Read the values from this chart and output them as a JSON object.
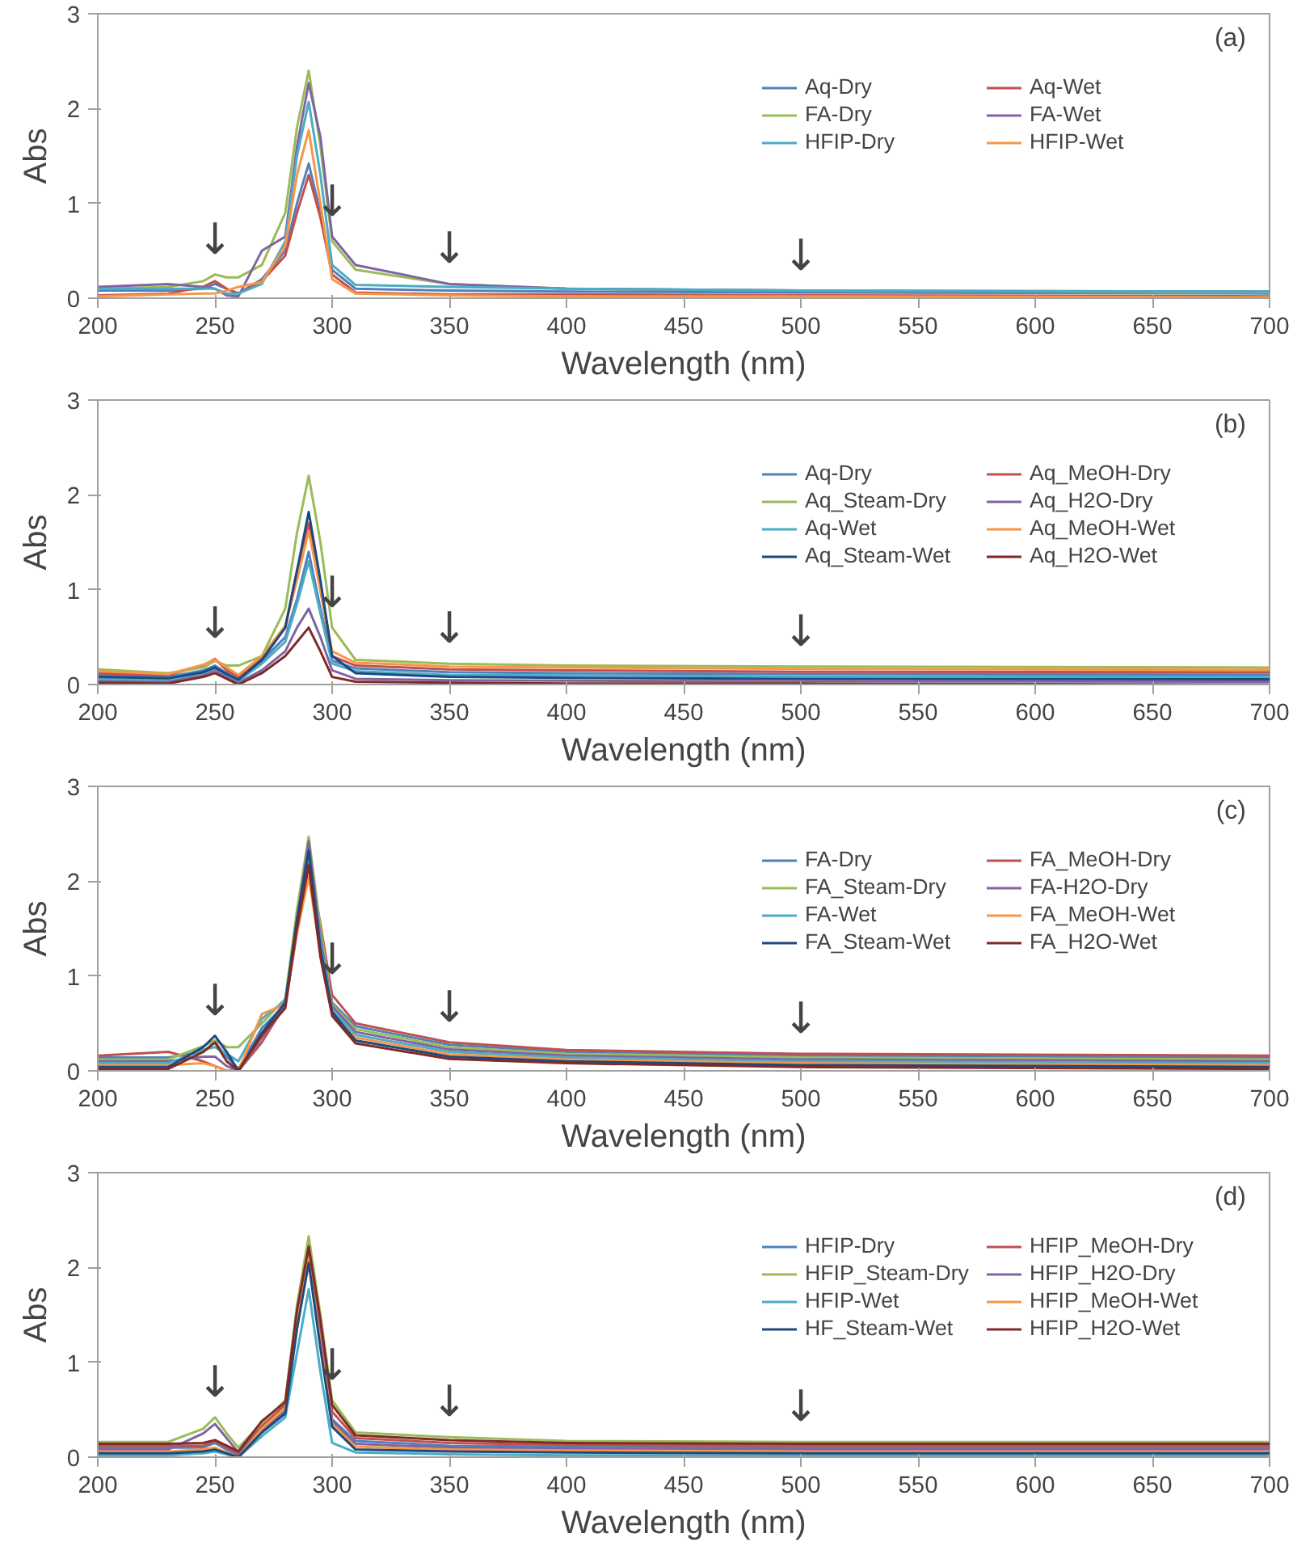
{
  "chart_data": [
    {
      "type": "line",
      "title": "(a)",
      "xlabel": "Wavelength (nm)",
      "ylabel": "Abs",
      "xlim": [
        200,
        700
      ],
      "ylim": [
        0,
        3
      ],
      "xticks": [
        200,
        250,
        300,
        350,
        400,
        450,
        500,
        550,
        600,
        650,
        700
      ],
      "yticks": [
        0,
        1,
        2,
        3
      ],
      "grid": false,
      "legend": "top right",
      "line_style": "solid",
      "x": [
        200,
        230,
        245,
        250,
        255,
        260,
        270,
        280,
        285,
        290,
        295,
        300,
        310,
        350,
        400,
        500,
        700
      ],
      "annotations": [
        {
          "text": "↓",
          "x": 250,
          "y": 0.25
        },
        {
          "text": "↓",
          "x": 300,
          "y": 0.65
        },
        {
          "text": "↓",
          "x": 350,
          "y": 0.15
        },
        {
          "text": "↓",
          "x": 500,
          "y": 0.08
        }
      ],
      "series": [
        {
          "name": "Aq-Dry",
          "color": "#4f81bd",
          "values": [
            0.08,
            0.08,
            0.1,
            0.15,
            0.1,
            0.05,
            0.2,
            0.5,
            1.0,
            1.42,
            0.9,
            0.3,
            0.1,
            0.08,
            0.07,
            0.06,
            0.05
          ]
        },
        {
          "name": "Aq-Wet",
          "color": "#c0504d",
          "values": [
            0.03,
            0.05,
            0.12,
            0.18,
            0.1,
            0.05,
            0.18,
            0.45,
            0.9,
            1.3,
            0.85,
            0.25,
            0.06,
            0.04,
            0.04,
            0.03,
            0.02
          ]
        },
        {
          "name": "FA-Dry",
          "color": "#9bbb59",
          "values": [
            0.1,
            0.12,
            0.18,
            0.25,
            0.22,
            0.22,
            0.35,
            0.9,
            1.8,
            2.4,
            1.6,
            0.6,
            0.3,
            0.15,
            0.1,
            0.08,
            0.06
          ]
        },
        {
          "name": "FA-Wet",
          "color": "#8064a2",
          "values": [
            0.12,
            0.15,
            0.12,
            0.1,
            0.03,
            0.02,
            0.5,
            0.65,
            1.6,
            2.27,
            1.7,
            0.65,
            0.35,
            0.15,
            0.1,
            0.08,
            0.07
          ]
        },
        {
          "name": "HFIP-Dry",
          "color": "#4bacc6",
          "values": [
            0.1,
            0.1,
            0.1,
            0.1,
            0.05,
            0.05,
            0.15,
            0.6,
            1.5,
            2.07,
            1.3,
            0.35,
            0.14,
            0.12,
            0.1,
            0.08,
            0.07
          ]
        },
        {
          "name": "HFIP-Wet",
          "color": "#f79646",
          "values": [
            0.02,
            0.04,
            0.05,
            0.05,
            0.08,
            0.12,
            0.17,
            0.55,
            1.3,
            1.77,
            1.0,
            0.2,
            0.05,
            0.03,
            0.02,
            0.02,
            0.01
          ]
        }
      ]
    },
    {
      "type": "line",
      "title": "(b)",
      "xlabel": "Wavelength (nm)",
      "ylabel": "Abs",
      "xlim": [
        200,
        700
      ],
      "ylim": [
        0,
        3
      ],
      "xticks": [
        200,
        250,
        300,
        350,
        400,
        450,
        500,
        550,
        600,
        650,
        700
      ],
      "yticks": [
        0,
        1,
        2,
        3
      ],
      "grid": false,
      "legend": "top right",
      "line_style": "solid",
      "x": [
        200,
        230,
        245,
        250,
        255,
        260,
        270,
        280,
        285,
        290,
        295,
        300,
        310,
        350,
        400,
        500,
        700
      ],
      "annotations": [
        {
          "text": "↓",
          "x": 250,
          "y": 0.27
        },
        {
          "text": "↓",
          "x": 300,
          "y": 0.6
        },
        {
          "text": "↓",
          "x": 350,
          "y": 0.22
        },
        {
          "text": "↓",
          "x": 500,
          "y": 0.19
        }
      ],
      "series": [
        {
          "name": "Aq-Dry",
          "color": "#4f81bd",
          "values": [
            0.1,
            0.08,
            0.15,
            0.2,
            0.12,
            0.05,
            0.25,
            0.5,
            0.9,
            1.4,
            0.8,
            0.25,
            0.17,
            0.13,
            0.12,
            0.11,
            0.105
          ]
        },
        {
          "name": "Aq_MeOH-Dry",
          "color": "#c0504d",
          "values": [
            0.12,
            0.1,
            0.2,
            0.27,
            0.15,
            0.08,
            0.28,
            0.6,
            1.2,
            1.7,
            1.0,
            0.3,
            0.2,
            0.16,
            0.15,
            0.135,
            0.13
          ]
        },
        {
          "name": "Aq_Steam-Dry",
          "color": "#9bbb59",
          "values": [
            0.16,
            0.12,
            0.18,
            0.25,
            0.2,
            0.2,
            0.3,
            0.8,
            1.6,
            2.2,
            1.5,
            0.6,
            0.26,
            0.22,
            0.2,
            0.19,
            0.18
          ]
        },
        {
          "name": "Aq_H2O-Dry",
          "color": "#8064a2",
          "values": [
            0.04,
            0.03,
            0.1,
            0.15,
            0.08,
            0.02,
            0.15,
            0.35,
            0.6,
            0.8,
            0.5,
            0.15,
            0.06,
            0.045,
            0.04,
            0.035,
            0.03
          ]
        },
        {
          "name": "Aq-Wet",
          "color": "#4bacc6",
          "values": [
            0.06,
            0.05,
            0.12,
            0.17,
            0.1,
            0.04,
            0.22,
            0.45,
            0.85,
            1.3,
            0.75,
            0.22,
            0.14,
            0.1,
            0.095,
            0.085,
            0.08
          ]
        },
        {
          "name": "Aq_MeOH-Wet",
          "color": "#f79646",
          "values": [
            0.14,
            0.11,
            0.21,
            0.26,
            0.18,
            0.1,
            0.3,
            0.62,
            1.1,
            1.62,
            1.0,
            0.35,
            0.23,
            0.19,
            0.18,
            0.165,
            0.155
          ]
        },
        {
          "name": "Aq_Steam-Wet",
          "color": "#1f497d",
          "values": [
            0.08,
            0.065,
            0.13,
            0.18,
            0.11,
            0.05,
            0.26,
            0.6,
            1.2,
            1.82,
            1.1,
            0.3,
            0.12,
            0.08,
            0.07,
            0.06,
            0.055
          ]
        },
        {
          "name": "Aq_H2O-Wet",
          "color": "#7f2a26",
          "values": [
            0.02,
            0.01,
            0.08,
            0.12,
            0.06,
            0.0,
            0.12,
            0.3,
            0.45,
            0.6,
            0.35,
            0.08,
            0.03,
            0.02,
            0.01,
            0.01,
            0.0
          ]
        }
      ]
    },
    {
      "type": "line",
      "title": "(c)",
      "xlabel": "Wavelength (nm)",
      "ylabel": "Abs",
      "xlim": [
        200,
        700
      ],
      "ylim": [
        0,
        3
      ],
      "xticks": [
        200,
        250,
        300,
        350,
        400,
        450,
        500,
        550,
        600,
        650,
        700
      ],
      "yticks": [
        0,
        1,
        2,
        3
      ],
      "grid": false,
      "legend": "top right",
      "line_style": "solid",
      "x": [
        200,
        230,
        245,
        250,
        255,
        260,
        270,
        280,
        285,
        290,
        295,
        300,
        310,
        350,
        400,
        500,
        700
      ],
      "annotations": [
        {
          "text": "↓",
          "x": 250,
          "y": 0.37
        },
        {
          "text": "↓",
          "x": 300,
          "y": 0.8
        },
        {
          "text": "↓",
          "x": 350,
          "y": 0.3
        },
        {
          "text": "↓",
          "x": 500,
          "y": 0.18
        }
      ],
      "series": [
        {
          "name": "FA-Dry",
          "color": "#4f81bd",
          "values": [
            0.14,
            0.14,
            0.2,
            0.3,
            0.15,
            0.02,
            0.45,
            0.7,
            1.62,
            2.37,
            1.45,
            0.72,
            0.47,
            0.275,
            0.2,
            0.16,
            0.14
          ]
        },
        {
          "name": "FA_MeOH-Dry",
          "color": "#c0504d",
          "values": [
            0.16,
            0.2,
            0.1,
            0.05,
            0.0,
            0.0,
            0.3,
            0.7,
            1.5,
            2.2,
            1.55,
            0.8,
            0.5,
            0.3,
            0.22,
            0.18,
            0.16
          ]
        },
        {
          "name": "FA_Steam-Dry",
          "color": "#9bbb59",
          "values": [
            0.12,
            0.12,
            0.26,
            0.32,
            0.25,
            0.25,
            0.5,
            0.76,
            1.7,
            2.47,
            1.5,
            0.7,
            0.44,
            0.25,
            0.18,
            0.14,
            0.12
          ]
        },
        {
          "name": "FA-H2O-Dry",
          "color": "#8064a2",
          "values": [
            0.1,
            0.1,
            0.15,
            0.15,
            0.05,
            0.0,
            0.35,
            0.68,
            1.58,
            2.42,
            1.4,
            0.68,
            0.41,
            0.225,
            0.16,
            0.12,
            0.1
          ]
        },
        {
          "name": "FA-Wet",
          "color": "#4bacc6",
          "values": [
            0.08,
            0.08,
            0.22,
            0.25,
            0.18,
            0.1,
            0.55,
            0.74,
            1.55,
            2.27,
            1.35,
            0.64,
            0.38,
            0.2,
            0.14,
            0.1,
            0.08
          ]
        },
        {
          "name": "FA_MeOH-Wet",
          "color": "#f79646",
          "values": [
            0.06,
            0.06,
            0.08,
            0.05,
            0.0,
            0.0,
            0.6,
            0.7,
            1.45,
            2.05,
            1.25,
            0.6,
            0.35,
            0.175,
            0.12,
            0.08,
            0.06
          ]
        },
        {
          "name": "FA_Steam-Wet",
          "color": "#1f497d",
          "values": [
            0.04,
            0.04,
            0.25,
            0.37,
            0.2,
            0.0,
            0.4,
            0.72,
            1.6,
            2.32,
            1.3,
            0.62,
            0.32,
            0.15,
            0.1,
            0.06,
            0.04
          ]
        },
        {
          "name": "FA_H2O-Wet",
          "color": "#7f2a26",
          "values": [
            0.02,
            0.02,
            0.2,
            0.3,
            0.1,
            0.0,
            0.38,
            0.66,
            1.5,
            2.17,
            1.2,
            0.58,
            0.29,
            0.125,
            0.08,
            0.04,
            0.02
          ]
        }
      ]
    },
    {
      "type": "line",
      "title": "(d)",
      "xlabel": "Wavelength (nm)",
      "ylabel": "Abs",
      "xlim": [
        200,
        700
      ],
      "ylim": [
        0,
        3
      ],
      "xticks": [
        200,
        250,
        300,
        350,
        400,
        450,
        500,
        550,
        600,
        650,
        700
      ],
      "yticks": [
        0,
        1,
        2,
        3
      ],
      "grid": false,
      "legend": "top right",
      "line_style": "solid",
      "x": [
        200,
        230,
        245,
        250,
        255,
        260,
        270,
        280,
        285,
        290,
        295,
        300,
        310,
        350,
        400,
        500,
        700
      ],
      "annotations": [
        {
          "text": "↓",
          "x": 250,
          "y": 0.42
        },
        {
          "text": "↓",
          "x": 300,
          "y": 0.6
        },
        {
          "text": "↓",
          "x": 350,
          "y": 0.21
        },
        {
          "text": "↓",
          "x": 500,
          "y": 0.16
        }
      ],
      "series": [
        {
          "name": "HFIP-Dry",
          "color": "#4f81bd",
          "values": [
            0.1,
            0.1,
            0.1,
            0.15,
            0.08,
            0.02,
            0.3,
            0.5,
            1.4,
            2.2,
            1.3,
            0.4,
            0.17,
            0.12,
            0.11,
            0.1,
            0.1
          ]
        },
        {
          "name": "HFIP_MeOH-Dry",
          "color": "#c0504d",
          "values": [
            0.12,
            0.12,
            0.12,
            0.17,
            0.1,
            0.04,
            0.33,
            0.55,
            1.5,
            2.25,
            1.4,
            0.48,
            0.2,
            0.15,
            0.13,
            0.12,
            0.12
          ]
        },
        {
          "name": "HFIP_Steam-Dry",
          "color": "#9bbb59",
          "values": [
            0.16,
            0.16,
            0.3,
            0.42,
            0.25,
            0.1,
            0.36,
            0.6,
            1.6,
            2.33,
            1.5,
            0.6,
            0.26,
            0.21,
            0.17,
            0.16,
            0.16
          ]
        },
        {
          "name": "HFIP_H2O-Dry",
          "color": "#8064a2",
          "values": [
            0.08,
            0.08,
            0.25,
            0.35,
            0.2,
            0.05,
            0.28,
            0.48,
            1.45,
            2.15,
            1.25,
            0.38,
            0.14,
            0.1,
            0.09,
            0.08,
            0.08
          ]
        },
        {
          "name": "HFIP-Wet",
          "color": "#4bacc6",
          "values": [
            0.02,
            0.02,
            0.04,
            0.06,
            0.03,
            0.0,
            0.22,
            0.42,
            1.1,
            1.77,
            0.9,
            0.15,
            0.05,
            0.03,
            0.02,
            0.02,
            0.02
          ]
        },
        {
          "name": "HFIP_MeOH-Wet",
          "color": "#f79646",
          "values": [
            0.06,
            0.06,
            0.08,
            0.1,
            0.05,
            0.0,
            0.3,
            0.52,
            1.42,
            2.1,
            1.2,
            0.35,
            0.11,
            0.08,
            0.07,
            0.06,
            0.06
          ]
        },
        {
          "name": "HF_Steam-Wet",
          "color": "#1f497d",
          "values": [
            0.04,
            0.04,
            0.06,
            0.08,
            0.04,
            0.0,
            0.26,
            0.46,
            1.35,
            2.05,
            1.15,
            0.32,
            0.08,
            0.06,
            0.05,
            0.04,
            0.04
          ]
        },
        {
          "name": "HFIP_H2O-Wet",
          "color": "#7f2a26",
          "values": [
            0.14,
            0.14,
            0.15,
            0.18,
            0.12,
            0.06,
            0.38,
            0.58,
            1.55,
            2.22,
            1.45,
            0.55,
            0.23,
            0.18,
            0.15,
            0.14,
            0.14
          ]
        }
      ]
    }
  ]
}
